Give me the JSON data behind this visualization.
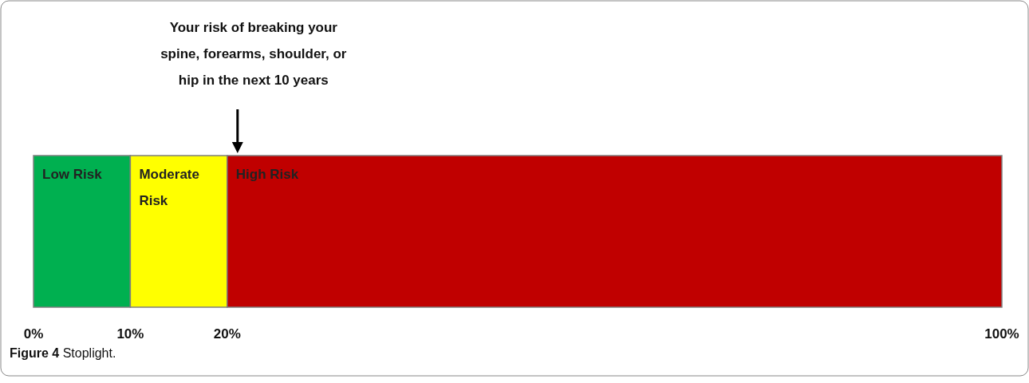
{
  "chart_data": {
    "type": "bar",
    "orientation": "horizontal",
    "stacked": true,
    "categories": [
      null
    ],
    "series": [
      {
        "name": "Low Risk",
        "color": "#00b050",
        "values": [
          10
        ]
      },
      {
        "name": "Moderate Risk",
        "color": "#ffff00",
        "values": [
          10
        ]
      },
      {
        "name": "High Risk",
        "color": "#c00000",
        "values": [
          80
        ]
      }
    ],
    "xlim": [
      0,
      100
    ],
    "xticks": [
      {
        "value": 0,
        "label": "0%"
      },
      {
        "value": 10,
        "label": "10%"
      },
      {
        "value": 20,
        "label": "20%"
      },
      {
        "value": 100,
        "label": "100%"
      }
    ],
    "tick_labels": "x",
    "annotations": [
      "Your risk of breaking your spine, forearms, shoulder, or hip in the next 10 years",
      "Figure 4 Stoplight."
    ]
  }
}
